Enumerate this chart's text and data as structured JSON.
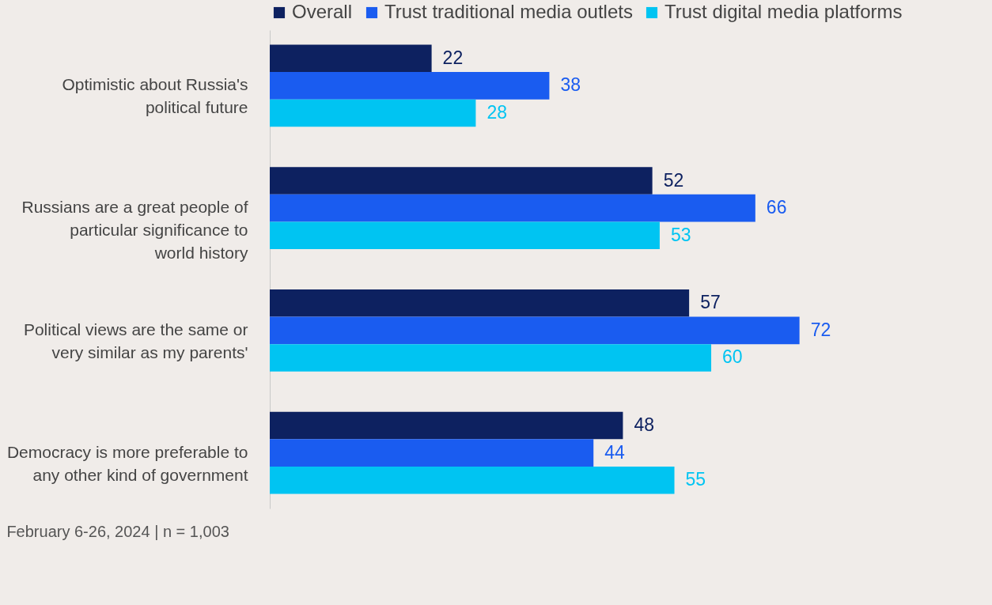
{
  "chart_data": {
    "type": "bar",
    "orientation": "horizontal",
    "categories": [
      "Optimistic about Russia's political future",
      "Russians are a great people of particular significance to world history",
      "Political views are the same or very similar as my parents'",
      "Democracy is more preferable to any other kind of government"
    ],
    "series": [
      {
        "name": "Overall",
        "color": "#0d2160",
        "values": [
          22,
          52,
          57,
          48
        ]
      },
      {
        "name": "Trust traditional media outlets",
        "color": "#1a5cf0",
        "values": [
          38,
          66,
          72,
          44
        ]
      },
      {
        "name": "Trust digital media platforms",
        "color": "#00c4f2",
        "values": [
          28,
          53,
          60,
          55
        ]
      }
    ],
    "data_labels": true,
    "legend": "top",
    "annotations": [
      "February 6-26, 2024 | n = 1,003"
    ]
  }
}
